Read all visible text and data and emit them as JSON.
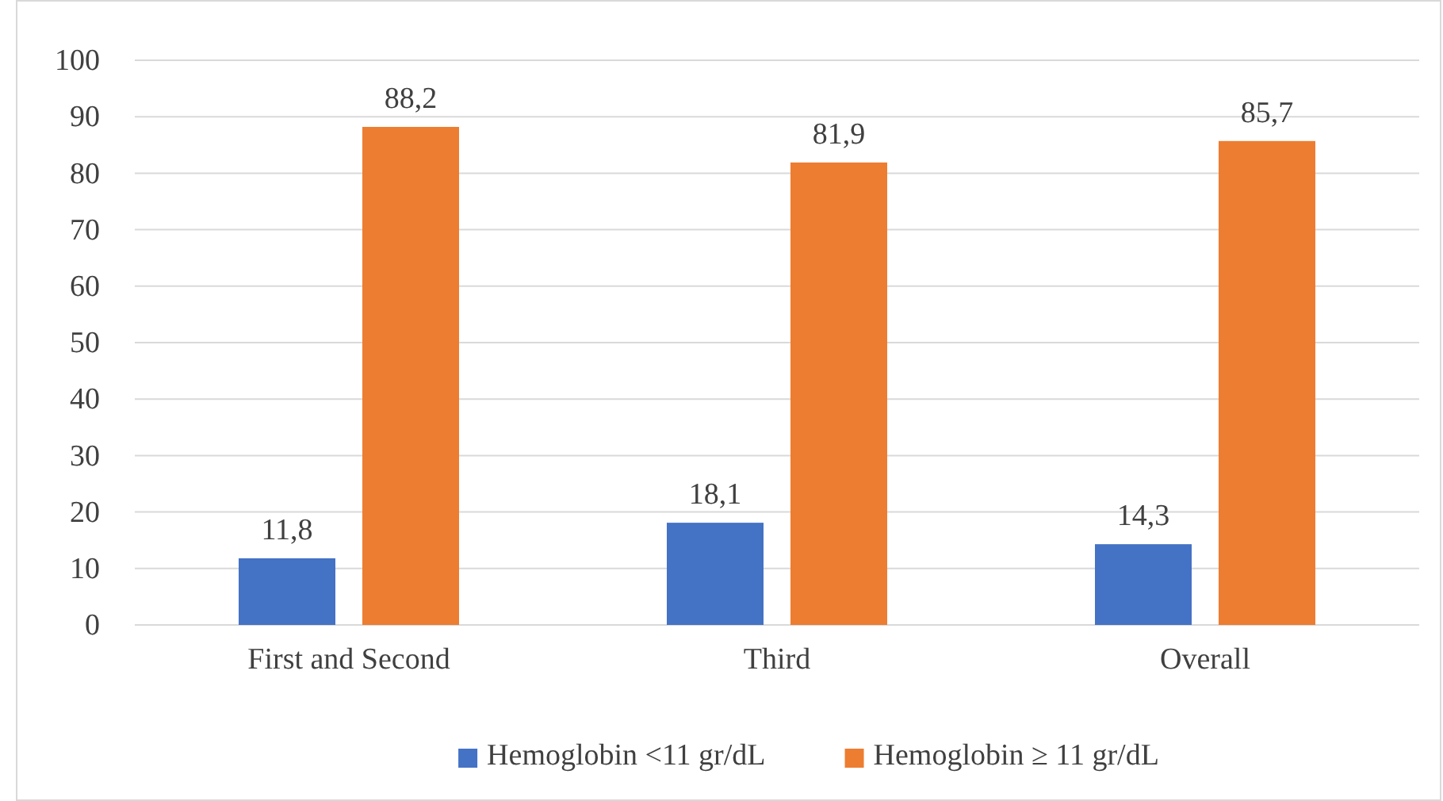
{
  "chart_data": {
    "type": "bar",
    "categories": [
      "First and Second",
      "Third",
      "Overall"
    ],
    "series": [
      {
        "name": "Hemoglobin <11 gr/dL",
        "color": "#4472c4",
        "values": [
          11.8,
          18.1,
          14.3
        ],
        "value_labels": [
          "11,8",
          "18,1",
          "14,3"
        ]
      },
      {
        "name": "Hemoglobin ≥ 11 gr/dL",
        "color": "#ed7d31",
        "values": [
          88.2,
          81.9,
          85.7
        ],
        "value_labels": [
          "88,2",
          "81,9",
          "85,7"
        ]
      }
    ],
    "ylim": [
      0,
      100
    ],
    "yticks": [
      0,
      10,
      20,
      30,
      40,
      50,
      60,
      70,
      80,
      90,
      100
    ],
    "grid": "y",
    "legend": "bottom"
  }
}
